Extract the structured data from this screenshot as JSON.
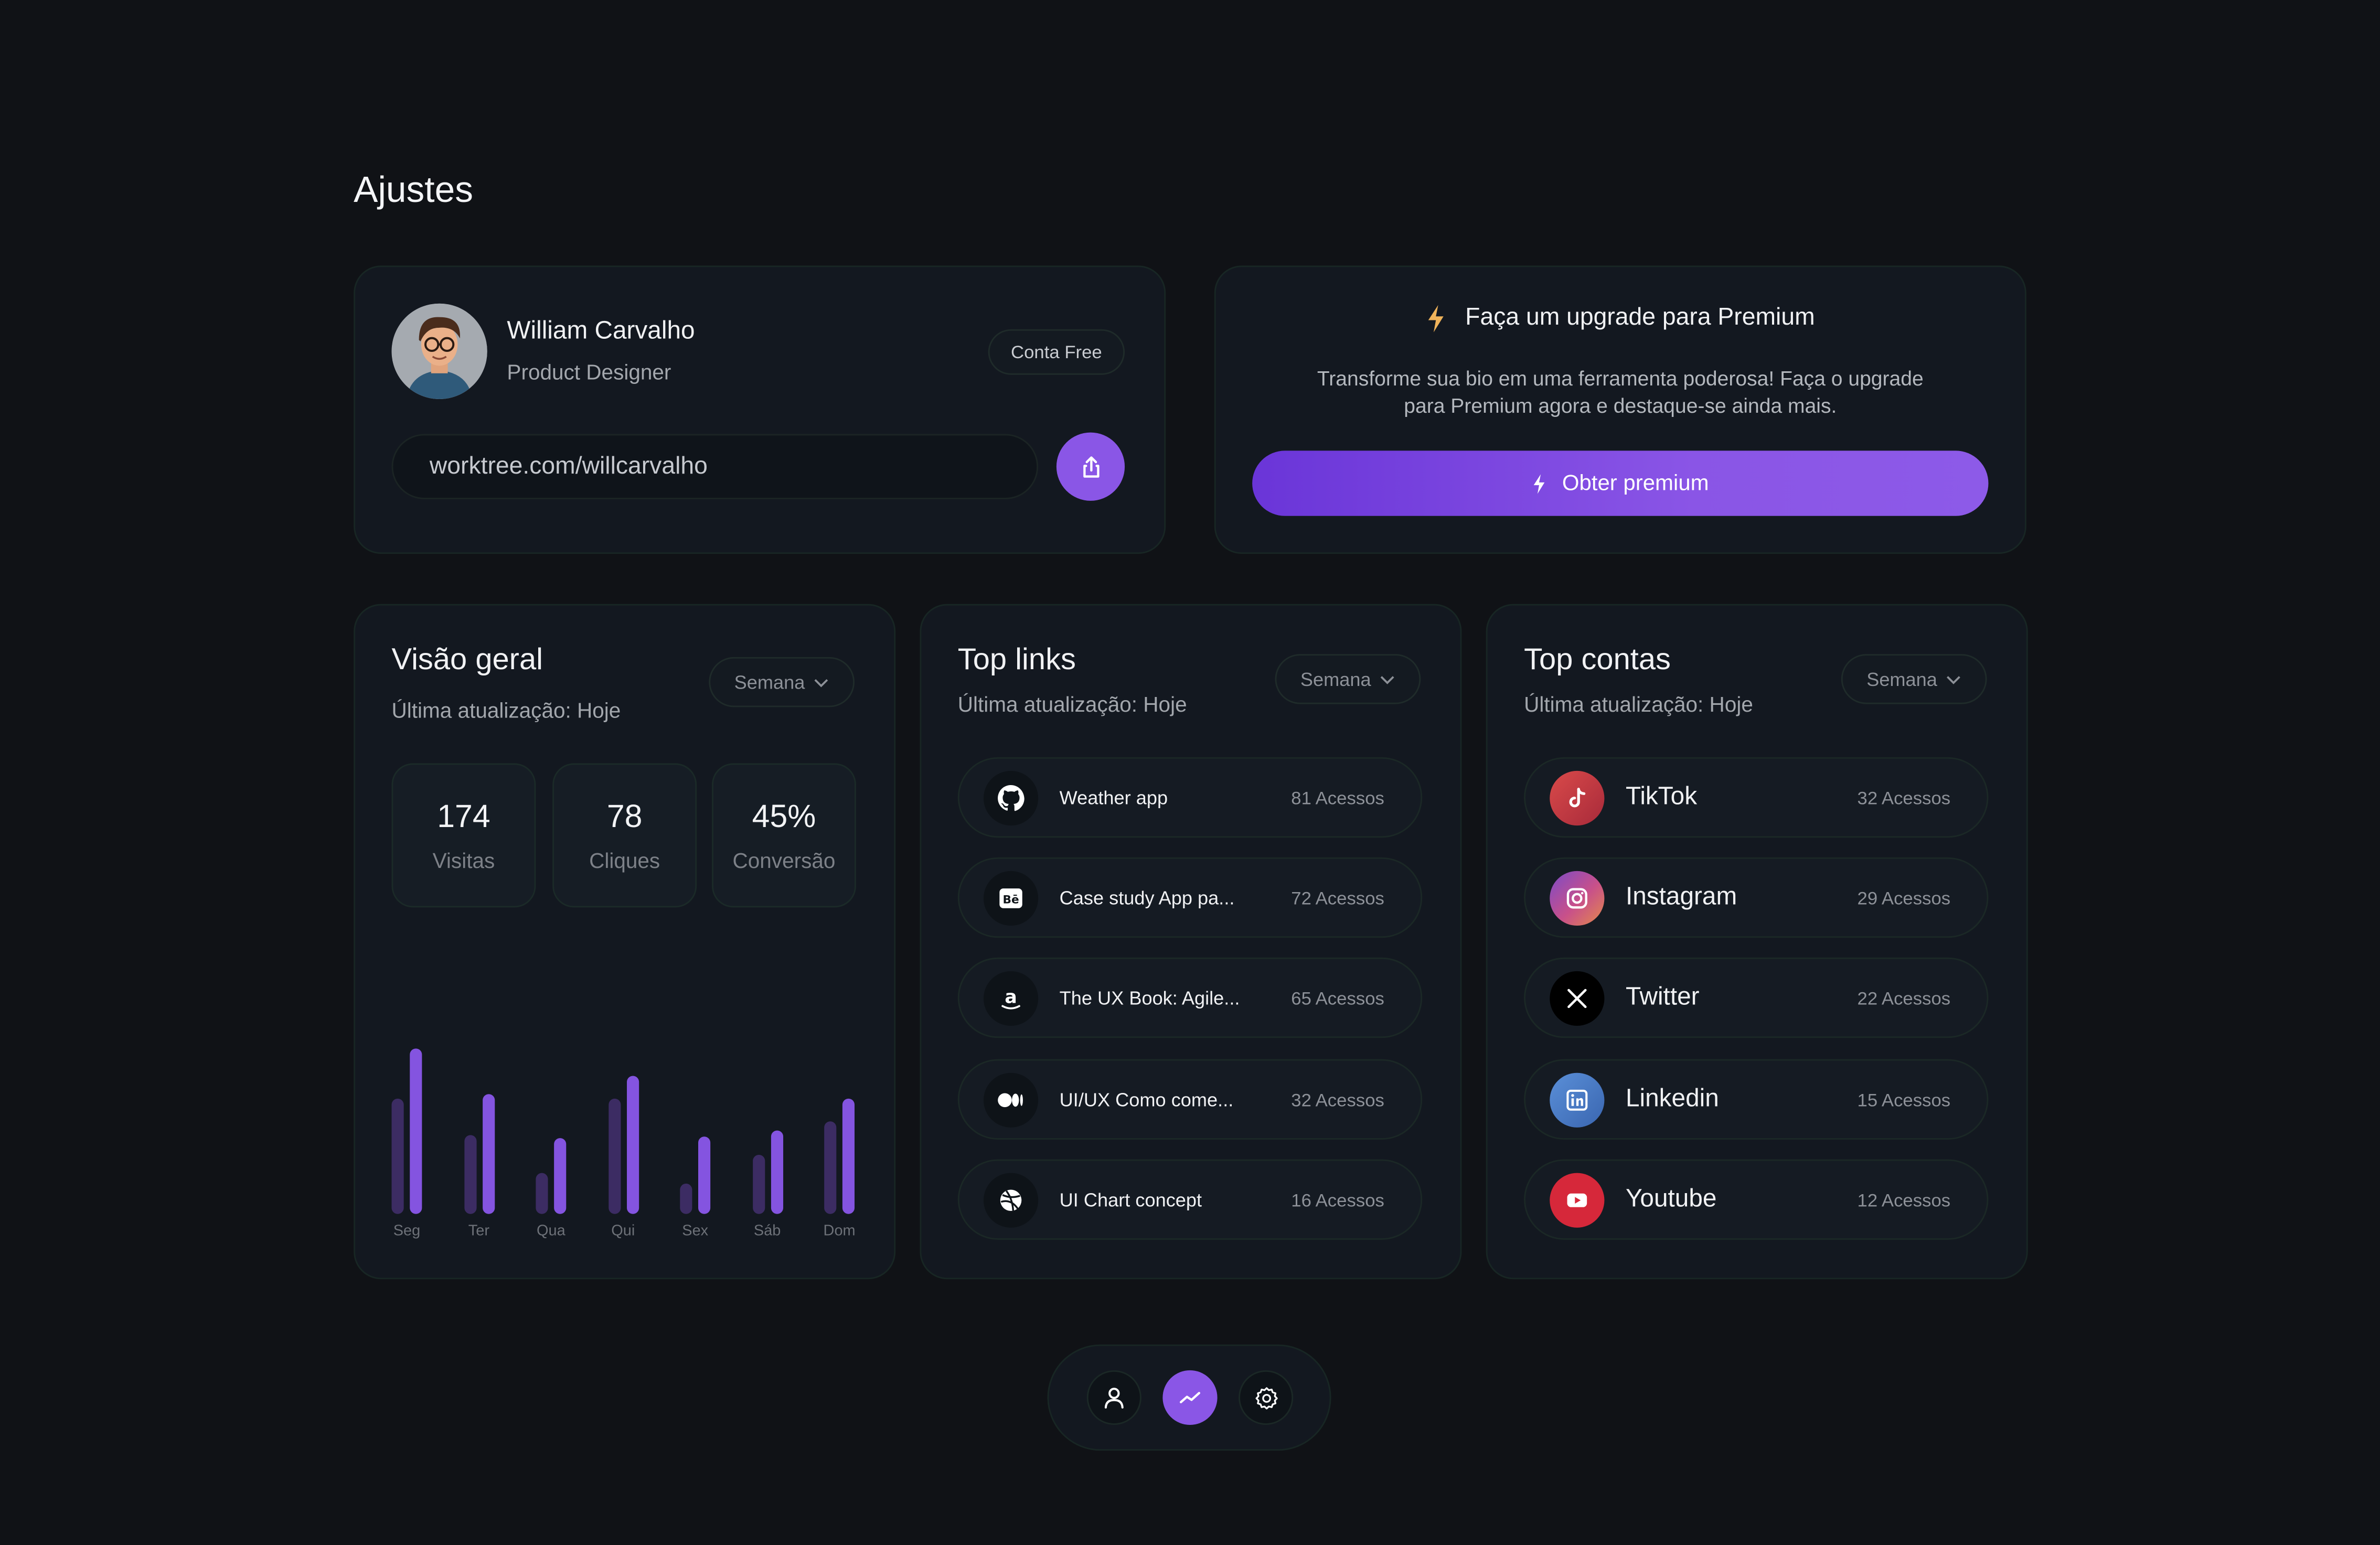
{
  "page": {
    "title": "Ajustes"
  },
  "profile": {
    "name": "William Carvalho",
    "role": "Product Designer",
    "plan_badge": "Conta Free",
    "url": "worktree.com/willcarvalho",
    "share_icon": "share-icon"
  },
  "premium": {
    "title": "Faça um upgrade para Premium",
    "description": "Transforme sua bio em uma ferramenta poderosa! Faça o upgrade para Premium agora e destaque-se ainda mais.",
    "button_label": "Obter premium",
    "icon": "lightning-icon",
    "accent_color": "#8a56e6",
    "icon_color": "#f0b35a"
  },
  "overview": {
    "title": "Visão geral",
    "subtitle": "Última atualização: Hoje",
    "period": "Semana",
    "stats": [
      {
        "value": "174",
        "label": "Visitas"
      },
      {
        "value": "78",
        "label": "Cliques"
      },
      {
        "value": "45%",
        "label": "Conversão"
      }
    ]
  },
  "chart_data": {
    "type": "bar",
    "categories": [
      "Seg",
      "Ter",
      "Qua",
      "Qui",
      "Sex",
      "Sáb",
      "Dom"
    ],
    "series": [
      {
        "values": [
          73,
          50,
          26,
          73,
          19,
          37,
          58
        ],
        "color": "#3c2c63"
      },
      {
        "values": [
          104,
          76,
          48,
          87,
          49,
          53,
          73
        ],
        "color": "#8454e0"
      }
    ],
    "ylim": [
      0,
      110
    ],
    "grid": false
  },
  "top_links": {
    "title": "Top links",
    "subtitle": "Última atualização: Hoje",
    "period": "Semana",
    "items": [
      {
        "label": "Weather app",
        "count": "81 Acessos",
        "icon": "github-icon"
      },
      {
        "label": "Case study App pa...",
        "count": "72 Acessos",
        "icon": "behance-icon"
      },
      {
        "label": "The UX Book: Agile...",
        "count": "65 Acessos",
        "icon": "amazon-icon"
      },
      {
        "label": "UI/UX Como come...",
        "count": "32 Acessos",
        "icon": "medium-icon"
      },
      {
        "label": "UI Chart concept",
        "count": "16 Acessos",
        "icon": "dribbble-icon"
      }
    ]
  },
  "top_accounts": {
    "title": "Top contas",
    "subtitle": "Última atualização: Hoje",
    "period": "Semana",
    "items": [
      {
        "label": "TikTok",
        "count": "32 Acessos",
        "icon": "tiktok-icon",
        "color": "#c8343f"
      },
      {
        "label": "Instagram",
        "count": "29 Acessos",
        "icon": "instagram-icon",
        "color": "#b14e8e"
      },
      {
        "label": "Twitter",
        "count": "22 Acessos",
        "icon": "x-icon",
        "color": "#000000"
      },
      {
        "label": "Linkedin",
        "count": "15 Acessos",
        "icon": "linkedin-icon",
        "color": "#4a7cc6"
      },
      {
        "label": "Youtube",
        "count": "12 Acessos",
        "icon": "youtube-icon",
        "color": "#d6283a"
      }
    ]
  },
  "bottom_nav": {
    "items": [
      {
        "icon": "user-icon",
        "active": false
      },
      {
        "icon": "trend-icon",
        "active": true
      },
      {
        "icon": "gear-icon",
        "active": false
      }
    ]
  }
}
